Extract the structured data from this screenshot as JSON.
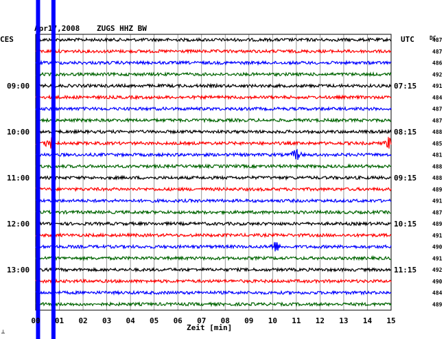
{
  "header": {
    "date": "Apr17,2008",
    "station": "ZUGS HHZ BW",
    "left_timezone": "CES",
    "right_timezone": "UTC",
    "dc_label": "DC"
  },
  "footer": {
    "xlabel": "Zeit [min]",
    "corner_mark": "┴"
  },
  "colors": {
    "black": "#000000",
    "red": "#ff0000",
    "blue": "#0000ff",
    "green": "#006400",
    "grid": "#808080",
    "marker": "#0000ff"
  },
  "chart_data": {
    "type": "line",
    "title": "Apr17,2008   ZUGS HHZ BW",
    "xlabel": "Zeit [min]",
    "ylabel": "",
    "xlim": [
      0,
      15
    ],
    "x_ticks": [
      "00",
      "01",
      "02",
      "03",
      "04",
      "05",
      "06",
      "07",
      "08",
      "09",
      "10",
      "11",
      "12",
      "13",
      "14",
      "15"
    ],
    "grid": true,
    "trace_color_cycle": [
      "black",
      "red",
      "blue",
      "green"
    ],
    "trace_count": 24,
    "left_hour_labels": [
      {
        "trace": 4,
        "label": "09:00"
      },
      {
        "trace": 8,
        "label": "10:00"
      },
      {
        "trace": 12,
        "label": "11:00"
      },
      {
        "trace": 16,
        "label": "12:00"
      },
      {
        "trace": 20,
        "label": "13:00"
      }
    ],
    "right_hour_labels": [
      {
        "trace": 4,
        "label": "07:15"
      },
      {
        "trace": 8,
        "label": "08:15"
      },
      {
        "trace": 12,
        "label": "09:15"
      },
      {
        "trace": 16,
        "label": "10:15"
      },
      {
        "trace": 20,
        "label": "11:15"
      }
    ],
    "dc_values": [
      "487",
      "487",
      "486",
      "492",
      "491",
      "484",
      "487",
      "487",
      "488",
      "485",
      "481",
      "488",
      "488",
      "489",
      "491",
      "487",
      "489",
      "491",
      "490",
      "491",
      "492",
      "490",
      "484",
      "489"
    ],
    "events": [
      {
        "trace": 9,
        "minute": 0.6,
        "note": "large disturbance"
      },
      {
        "trace": 9,
        "minute": 14.9,
        "note": "spike"
      },
      {
        "trace": 18,
        "minute": 10.1,
        "note": "burst"
      },
      {
        "trace": 10,
        "minute": 11.0,
        "note": "burst"
      }
    ],
    "marker_minutes": [
      0.1,
      0.75
    ]
  }
}
